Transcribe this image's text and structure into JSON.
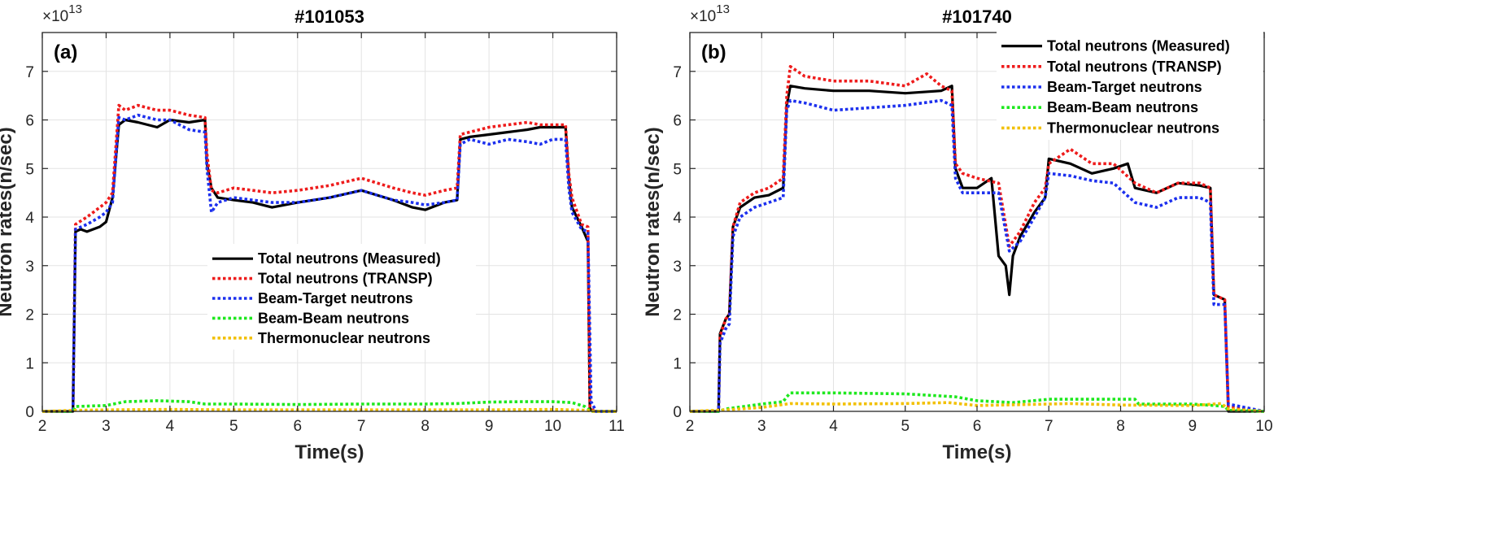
{
  "chart_data": [
    {
      "type": "line",
      "title": "#101053",
      "panel_label": "(a)",
      "xlabel": "Time(s)",
      "ylabel": "Neutron rates(n/sec)",
      "exponent": "×10",
      "exponent_power": "13",
      "xlim": [
        2,
        11
      ],
      "ylim": [
        0,
        7.8
      ],
      "xticks": [
        2,
        3,
        4,
        5,
        6,
        7,
        8,
        9,
        10,
        11
      ],
      "yticks": [
        0,
        1,
        2,
        3,
        4,
        5,
        6,
        7
      ],
      "grid": true,
      "legend_position": "center",
      "series": [
        {
          "name": "Total neutrons (Measured)",
          "color": "#000000",
          "style": "solid",
          "x": [
            2,
            2.48,
            2.52,
            2.6,
            2.7,
            2.9,
            3.0,
            3.1,
            3.2,
            3.3,
            3.5,
            3.8,
            4.0,
            4.3,
            4.55,
            4.58,
            4.65,
            4.75,
            5.0,
            5.3,
            5.6,
            6.0,
            6.5,
            7.0,
            7.5,
            7.8,
            8.0,
            8.3,
            8.5,
            8.55,
            8.7,
            9.0,
            9.3,
            9.6,
            9.8,
            10.0,
            10.2,
            10.25,
            10.3,
            10.45,
            10.55,
            10.58,
            10.65,
            11
          ],
          "y": [
            0,
            0,
            3.7,
            3.75,
            3.7,
            3.8,
            3.9,
            4.4,
            5.9,
            6.0,
            5.95,
            5.85,
            6.0,
            5.95,
            6.0,
            5.1,
            4.6,
            4.4,
            4.35,
            4.3,
            4.2,
            4.3,
            4.4,
            4.55,
            4.35,
            4.2,
            4.15,
            4.3,
            4.35,
            5.6,
            5.65,
            5.7,
            5.75,
            5.8,
            5.85,
            5.85,
            5.85,
            4.8,
            4.2,
            3.8,
            3.5,
            0.05,
            0,
            0
          ]
        },
        {
          "name": "Total neutrons (TRANSP)",
          "color": "#ee1c1c",
          "style": "dotted",
          "x": [
            2,
            2.48,
            2.52,
            2.7,
            2.9,
            3.0,
            3.1,
            3.2,
            3.3,
            3.5,
            3.8,
            4.0,
            4.3,
            4.55,
            4.58,
            4.65,
            4.75,
            5.0,
            5.3,
            5.6,
            6.0,
            6.5,
            7.0,
            7.5,
            7.8,
            8.0,
            8.3,
            8.5,
            8.55,
            8.7,
            9.0,
            9.3,
            9.6,
            9.8,
            10.0,
            10.2,
            10.25,
            10.3,
            10.45,
            10.55,
            10.58,
            10.65,
            11
          ],
          "y": [
            0,
            0,
            3.85,
            4.0,
            4.2,
            4.3,
            4.5,
            6.3,
            6.2,
            6.3,
            6.2,
            6.2,
            6.1,
            6.05,
            5.3,
            4.55,
            4.5,
            4.6,
            4.55,
            4.5,
            4.55,
            4.65,
            4.8,
            4.6,
            4.5,
            4.45,
            4.55,
            4.6,
            5.7,
            5.75,
            5.85,
            5.9,
            5.95,
            5.9,
            5.9,
            5.9,
            4.9,
            4.4,
            3.85,
            3.8,
            0.1,
            0,
            0
          ]
        },
        {
          "name": "Beam-Target neutrons",
          "color": "#1c30ee",
          "style": "dotted",
          "x": [
            2,
            2.48,
            2.52,
            2.7,
            2.9,
            3.0,
            3.1,
            3.2,
            3.3,
            3.5,
            3.8,
            4.0,
            4.3,
            4.55,
            4.58,
            4.65,
            4.75,
            5.0,
            5.3,
            5.6,
            6.0,
            6.5,
            7.0,
            7.5,
            7.8,
            8.0,
            8.3,
            8.5,
            8.55,
            8.7,
            9.0,
            9.3,
            9.6,
            9.8,
            10.0,
            10.2,
            10.25,
            10.3,
            10.45,
            10.55,
            10.6,
            10.68,
            11
          ],
          "y": [
            0,
            0,
            3.75,
            3.85,
            4.0,
            4.1,
            4.3,
            6.05,
            6.0,
            6.1,
            6.0,
            6.0,
            5.8,
            5.75,
            5.0,
            4.1,
            4.3,
            4.4,
            4.35,
            4.3,
            4.3,
            4.4,
            4.55,
            4.35,
            4.3,
            4.25,
            4.3,
            4.35,
            5.5,
            5.6,
            5.5,
            5.6,
            5.55,
            5.5,
            5.6,
            5.6,
            4.6,
            4.1,
            3.75,
            3.7,
            0.2,
            0,
            0
          ]
        },
        {
          "name": "Beam-Beam neutrons",
          "color": "#1ee81e",
          "style": "dotted",
          "x": [
            2,
            2.48,
            2.52,
            3.0,
            3.3,
            3.8,
            4.3,
            4.55,
            5.0,
            6.0,
            7.0,
            8.0,
            8.5,
            9.0,
            9.5,
            10.0,
            10.3,
            10.5,
            10.6,
            11
          ],
          "y": [
            0,
            0,
            0.1,
            0.12,
            0.2,
            0.22,
            0.2,
            0.15,
            0.15,
            0.14,
            0.15,
            0.15,
            0.16,
            0.19,
            0.2,
            0.2,
            0.18,
            0.1,
            0,
            0
          ]
        },
        {
          "name": "Thermonuclear neutrons",
          "color": "#f2c000",
          "style": "dotted",
          "x": [
            2,
            2.5,
            3.0,
            4.0,
            5.0,
            6.0,
            7.0,
            8.0,
            9.0,
            10.0,
            10.55,
            10.6,
            11
          ],
          "y": [
            0,
            0.02,
            0.03,
            0.04,
            0.03,
            0.03,
            0.03,
            0.03,
            0.03,
            0.04,
            0.02,
            0,
            0
          ]
        }
      ]
    },
    {
      "type": "line",
      "title": "#101740",
      "panel_label": "(b)",
      "xlabel": "Time(s)",
      "ylabel": "Neutron rates(n/sec)",
      "exponent": "×10",
      "exponent_power": "13",
      "xlim": [
        2,
        10
      ],
      "ylim": [
        0,
        7.8
      ],
      "xticks": [
        2,
        3,
        4,
        5,
        6,
        7,
        8,
        9,
        10
      ],
      "yticks": [
        0,
        1,
        2,
        3,
        4,
        5,
        6,
        7
      ],
      "grid": true,
      "legend_position": "top-right",
      "series": [
        {
          "name": "Total neutrons (Measured)",
          "color": "#000000",
          "style": "solid",
          "x": [
            2,
            2.4,
            2.42,
            2.5,
            2.55,
            2.6,
            2.7,
            2.9,
            3.1,
            3.3,
            3.35,
            3.4,
            3.6,
            4.0,
            4.5,
            5.0,
            5.5,
            5.65,
            5.7,
            5.8,
            6.0,
            6.2,
            6.3,
            6.4,
            6.45,
            6.5,
            6.6,
            6.8,
            6.95,
            7.0,
            7.3,
            7.6,
            7.9,
            8.1,
            8.2,
            8.5,
            8.8,
            9.1,
            9.25,
            9.3,
            9.45,
            9.5,
            10
          ],
          "y": [
            0,
            0,
            1.6,
            1.9,
            2.0,
            3.8,
            4.2,
            4.4,
            4.45,
            4.6,
            6.3,
            6.7,
            6.65,
            6.6,
            6.6,
            6.55,
            6.6,
            6.7,
            5.0,
            4.6,
            4.6,
            4.8,
            3.2,
            3.0,
            2.4,
            3.2,
            3.6,
            4.1,
            4.4,
            5.2,
            5.1,
            4.9,
            5.0,
            5.1,
            4.6,
            4.5,
            4.7,
            4.65,
            4.6,
            2.4,
            2.3,
            0,
            0
          ]
        },
        {
          "name": "Total neutrons (TRANSP)",
          "color": "#ee1c1c",
          "style": "dotted",
          "x": [
            2,
            2.4,
            2.42,
            2.5,
            2.55,
            2.6,
            2.7,
            2.9,
            3.1,
            3.3,
            3.35,
            3.4,
            3.6,
            4.0,
            4.5,
            5.0,
            5.3,
            5.5,
            5.65,
            5.7,
            5.8,
            6.0,
            6.3,
            6.45,
            6.6,
            6.8,
            6.95,
            7.0,
            7.3,
            7.6,
            7.9,
            8.2,
            8.5,
            8.8,
            9.1,
            9.25,
            9.3,
            9.45,
            9.5,
            10
          ],
          "y": [
            0,
            0,
            1.55,
            1.9,
            2.0,
            3.8,
            4.3,
            4.5,
            4.6,
            4.8,
            6.5,
            7.1,
            6.9,
            6.8,
            6.8,
            6.7,
            6.95,
            6.7,
            6.6,
            5.1,
            4.9,
            4.8,
            4.7,
            3.4,
            3.7,
            4.3,
            4.6,
            5.1,
            5.4,
            5.1,
            5.1,
            4.7,
            4.5,
            4.7,
            4.7,
            4.6,
            2.4,
            2.3,
            0.1,
            0
          ]
        },
        {
          "name": "Beam-Target neutrons",
          "color": "#1c30ee",
          "style": "dotted",
          "x": [
            2,
            2.4,
            2.42,
            2.5,
            2.55,
            2.6,
            2.7,
            2.9,
            3.1,
            3.3,
            3.35,
            3.4,
            3.6,
            4.0,
            4.5,
            5.0,
            5.5,
            5.65,
            5.7,
            5.8,
            6.0,
            6.3,
            6.45,
            6.6,
            6.8,
            6.95,
            7.0,
            7.3,
            7.6,
            7.9,
            8.2,
            8.5,
            8.8,
            9.1,
            9.25,
            9.3,
            9.45,
            9.5,
            10
          ],
          "y": [
            0,
            0,
            1.4,
            1.7,
            1.8,
            3.6,
            4.0,
            4.2,
            4.3,
            4.4,
            6.2,
            6.4,
            6.35,
            6.2,
            6.25,
            6.3,
            6.4,
            6.3,
            4.8,
            4.5,
            4.5,
            4.5,
            3.3,
            3.5,
            4.0,
            4.4,
            4.9,
            4.85,
            4.75,
            4.7,
            4.3,
            4.2,
            4.4,
            4.4,
            4.3,
            2.2,
            2.2,
            0.15,
            0
          ]
        },
        {
          "name": "Beam-Beam neutrons",
          "color": "#1ee81e",
          "style": "dotted",
          "x": [
            2,
            2.4,
            2.5,
            3.0,
            3.3,
            3.35,
            3.4,
            4.0,
            5.0,
            5.7,
            6.0,
            6.5,
            7.0,
            7.5,
            8.2,
            8.25,
            9.0,
            9.3,
            9.45,
            9.5,
            10
          ],
          "y": [
            0,
            0,
            0.05,
            0.15,
            0.2,
            0.3,
            0.38,
            0.38,
            0.36,
            0.3,
            0.22,
            0.18,
            0.25,
            0.25,
            0.25,
            0.15,
            0.15,
            0.12,
            0.1,
            0.02,
            0
          ]
        },
        {
          "name": "Thermonuclear neutrons",
          "color": "#f2c000",
          "style": "dotted",
          "x": [
            2,
            2.5,
            3.0,
            3.4,
            4.0,
            5.0,
            5.6,
            6.0,
            7.0,
            7.3,
            8.0,
            9.0,
            9.4,
            9.5,
            10
          ],
          "y": [
            0,
            0.03,
            0.08,
            0.16,
            0.15,
            0.16,
            0.18,
            0.12,
            0.15,
            0.16,
            0.13,
            0.12,
            0.16,
            0.05,
            0
          ]
        }
      ]
    }
  ]
}
